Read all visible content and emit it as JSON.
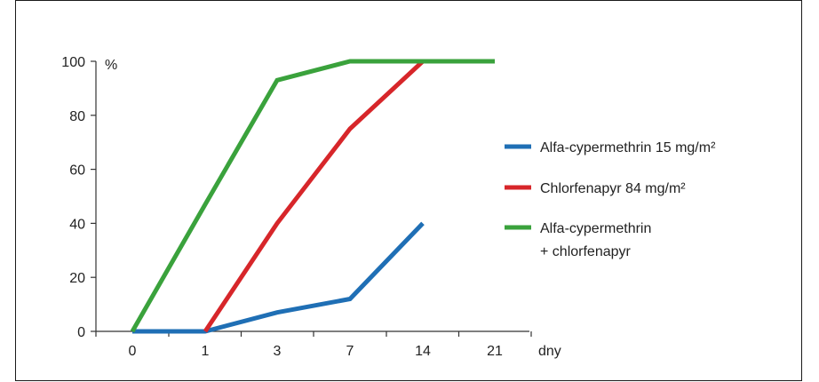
{
  "chart_data": {
    "type": "line",
    "categories": [
      "0",
      "1",
      "3",
      "7",
      "14",
      "21"
    ],
    "x_unit_label": "dny",
    "y_unit_label": "%",
    "ylim": [
      0,
      100
    ],
    "y_ticks": [
      0,
      20,
      40,
      60,
      80,
      100
    ],
    "grid": false,
    "legend_position": "right",
    "series": [
      {
        "key": "s1",
        "legend_lines": [
          "Alfa-cypermethrin 15 mg/m²"
        ],
        "color": "#1f6fb5",
        "values": [
          0,
          0,
          7,
          12,
          40,
          null
        ]
      },
      {
        "key": "s2",
        "legend_lines": [
          "Chlorfenapyr 84 mg/m²"
        ],
        "color": "#d7262a",
        "values": [
          null,
          0,
          40,
          75,
          100,
          100
        ]
      },
      {
        "key": "s3",
        "legend_lines": [
          "Alfa-cypermethrin",
          "+ chlorfenapyr"
        ],
        "color": "#3aa23c",
        "values": [
          0,
          47,
          93,
          100,
          100,
          100
        ]
      }
    ]
  }
}
